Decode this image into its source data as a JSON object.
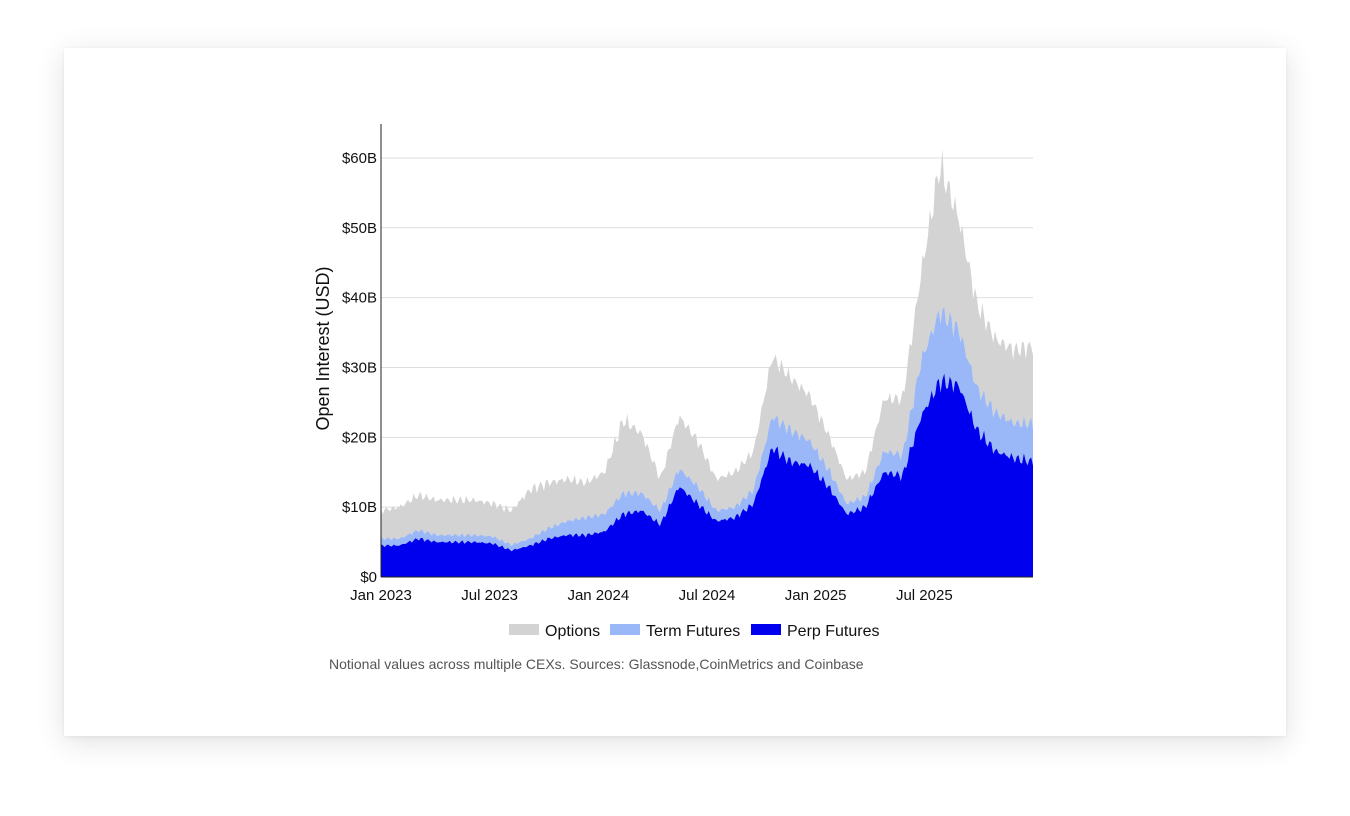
{
  "colors": {
    "options": "#d3d3d3",
    "term_futures": "#9ab7f7",
    "perp_futures": "#0000ee",
    "grid": "#dddddd",
    "axis": "#222222"
  },
  "note": "Notional values across multiple CEXs. Sources: Glassnode,CoinMetrics and Coinbase",
  "chart_data": {
    "type": "area",
    "stacked": true,
    "ylabel": "Open Interest (USD)",
    "xlabel": "",
    "ylim": [
      0,
      64
    ],
    "yticks": [
      {
        "v": 0,
        "label": "$0"
      },
      {
        "v": 10,
        "label": "$10B"
      },
      {
        "v": 20,
        "label": "$20B"
      },
      {
        "v": 30,
        "label": "$30B"
      },
      {
        "v": 40,
        "label": "$40B"
      },
      {
        "v": 50,
        "label": "$50B"
      },
      {
        "v": 60,
        "label": "$60B"
      }
    ],
    "xticks": [
      {
        "x": "2023-01",
        "label": "Jan 2023"
      },
      {
        "x": "2023-07",
        "label": "Jul 2023"
      },
      {
        "x": "2024-01",
        "label": "Jan 2024"
      },
      {
        "x": "2024-07",
        "label": "Jul 2024"
      },
      {
        "x": "2025-01",
        "label": "Jan 2025"
      },
      {
        "x": "2025-07",
        "label": "Jul 2025"
      }
    ],
    "xlim": [
      "2023-01",
      "2026-01"
    ],
    "grid": true,
    "legend": "bottom",
    "x": [
      "2023-01",
      "2023-02",
      "2023-03",
      "2023-04",
      "2023-05",
      "2023-06",
      "2023-07",
      "2023-08",
      "2023-09",
      "2023-10",
      "2023-11",
      "2023-12",
      "2024-01",
      "2024-02",
      "2024-03",
      "2024-04",
      "2024-05",
      "2024-06",
      "2024-07",
      "2024-08",
      "2024-09",
      "2024-10",
      "2024-11",
      "2024-12",
      "2025-01",
      "2025-02",
      "2025-03",
      "2025-04",
      "2025-05",
      "2025-06",
      "2025-07",
      "2025-08",
      "2025-09",
      "2025-10",
      "2025-11",
      "2025-12"
    ],
    "series": [
      {
        "name": "Perp Futures",
        "values": [
          4.5,
          4.5,
          5.5,
          5.0,
          5.0,
          5.0,
          4.8,
          3.8,
          4.5,
          5.5,
          6.0,
          6.0,
          6.5,
          9.0,
          9.5,
          7.5,
          13.0,
          10.5,
          8.0,
          8.5,
          10.5,
          18.5,
          16.5,
          16.0,
          13.0,
          9.0,
          10.0,
          15.0,
          14.5,
          23.0,
          28.0,
          27.5,
          21.0,
          18.0,
          17.0,
          16.5
        ]
      },
      {
        "name": "Term Futures",
        "values": [
          1.0,
          1.0,
          1.2,
          1.0,
          1.0,
          1.0,
          1.0,
          0.8,
          1.0,
          1.5,
          2.0,
          2.5,
          2.5,
          3.0,
          2.5,
          2.0,
          2.5,
          2.5,
          1.5,
          1.5,
          2.0,
          4.5,
          4.5,
          3.5,
          2.5,
          1.5,
          1.5,
          3.0,
          3.0,
          8.0,
          10.0,
          8.0,
          6.0,
          5.5,
          5.0,
          5.5
        ]
      },
      {
        "name": "Options",
        "values": [
          4.0,
          4.5,
          5.0,
          5.0,
          5.0,
          5.0,
          4.7,
          4.9,
          7.0,
          6.5,
          6.0,
          5.0,
          6.0,
          10.5,
          8.5,
          4.5,
          7.5,
          6.5,
          4.5,
          5.0,
          5.5,
          8.5,
          7.5,
          6.5,
          5.0,
          3.5,
          3.5,
          7.5,
          8.0,
          12.5,
          21.0,
          16.0,
          12.0,
          10.5,
          10.5,
          11.0
        ]
      }
    ]
  }
}
